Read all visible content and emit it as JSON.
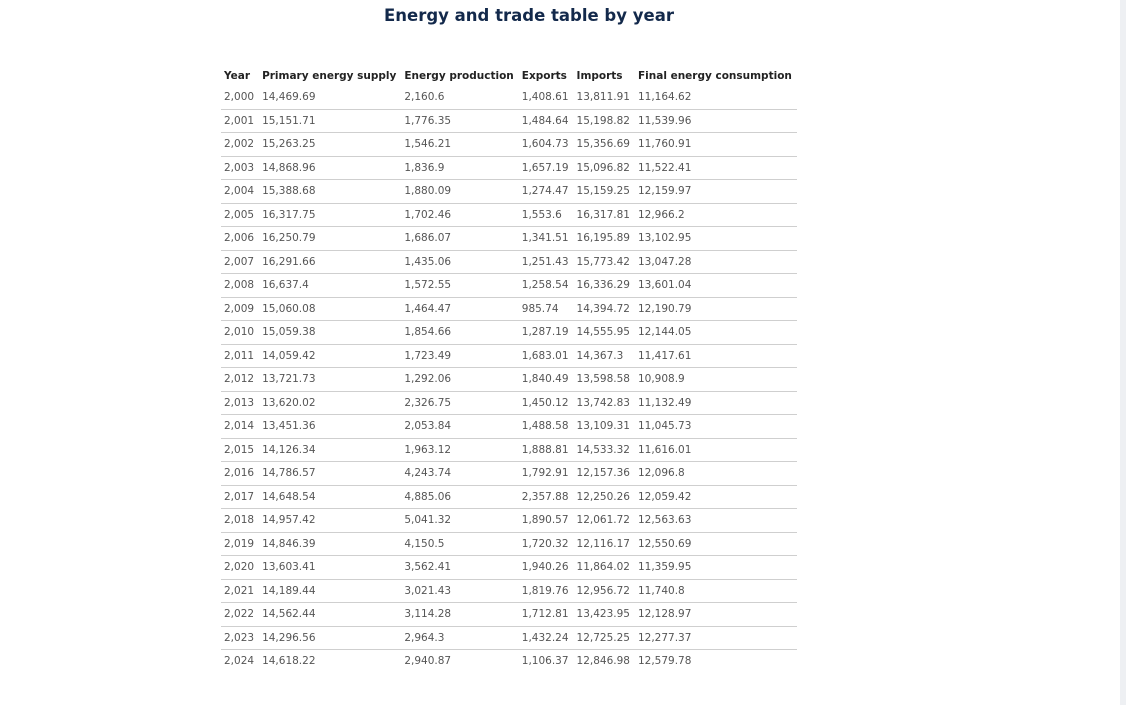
{
  "chart_data": {
    "type": "table",
    "title": "Energy and trade table by year",
    "columns": [
      "Year",
      "Primary energy supply",
      "Energy production",
      "Exports",
      "Imports",
      "Final energy consumption"
    ],
    "rows": [
      [
        "2,000",
        "14,469.69",
        "2,160.6",
        "1,408.61",
        "13,811.91",
        "11,164.62"
      ],
      [
        "2,001",
        "15,151.71",
        "1,776.35",
        "1,484.64",
        "15,198.82",
        "11,539.96"
      ],
      [
        "2,002",
        "15,263.25",
        "1,546.21",
        "1,604.73",
        "15,356.69",
        "11,760.91"
      ],
      [
        "2,003",
        "14,868.96",
        "1,836.9",
        "1,657.19",
        "15,096.82",
        "11,522.41"
      ],
      [
        "2,004",
        "15,388.68",
        "1,880.09",
        "1,274.47",
        "15,159.25",
        "12,159.97"
      ],
      [
        "2,005",
        "16,317.75",
        "1,702.46",
        "1,553.6",
        "16,317.81",
        "12,966.2"
      ],
      [
        "2,006",
        "16,250.79",
        "1,686.07",
        "1,341.51",
        "16,195.89",
        "13,102.95"
      ],
      [
        "2,007",
        "16,291.66",
        "1,435.06",
        "1,251.43",
        "15,773.42",
        "13,047.28"
      ],
      [
        "2,008",
        "16,637.4",
        "1,572.55",
        "1,258.54",
        "16,336.29",
        "13,601.04"
      ],
      [
        "2,009",
        "15,060.08",
        "1,464.47",
        "985.74",
        "14,394.72",
        "12,190.79"
      ],
      [
        "2,010",
        "15,059.38",
        "1,854.66",
        "1,287.19",
        "14,555.95",
        "12,144.05"
      ],
      [
        "2,011",
        "14,059.42",
        "1,723.49",
        "1,683.01",
        "14,367.3",
        "11,417.61"
      ],
      [
        "2,012",
        "13,721.73",
        "1,292.06",
        "1,840.49",
        "13,598.58",
        "10,908.9"
      ],
      [
        "2,013",
        "13,620.02",
        "2,326.75",
        "1,450.12",
        "13,742.83",
        "11,132.49"
      ],
      [
        "2,014",
        "13,451.36",
        "2,053.84",
        "1,488.58",
        "13,109.31",
        "11,045.73"
      ],
      [
        "2,015",
        "14,126.34",
        "1,963.12",
        "1,888.81",
        "14,533.32",
        "11,616.01"
      ],
      [
        "2,016",
        "14,786.57",
        "4,243.74",
        "1,792.91",
        "12,157.36",
        "12,096.8"
      ],
      [
        "2,017",
        "14,648.54",
        "4,885.06",
        "2,357.88",
        "12,250.26",
        "12,059.42"
      ],
      [
        "2,018",
        "14,957.42",
        "5,041.32",
        "1,890.57",
        "12,061.72",
        "12,563.63"
      ],
      [
        "2,019",
        "14,846.39",
        "4,150.5",
        "1,720.32",
        "12,116.17",
        "12,550.69"
      ],
      [
        "2,020",
        "13,603.41",
        "3,562.41",
        "1,940.26",
        "11,864.02",
        "11,359.95"
      ],
      [
        "2,021",
        "14,189.44",
        "3,021.43",
        "1,819.76",
        "12,956.72",
        "11,740.8"
      ],
      [
        "2,022",
        "14,562.44",
        "3,114.28",
        "1,712.81",
        "13,423.95",
        "12,128.97"
      ],
      [
        "2,023",
        "14,296.56",
        "2,964.3",
        "1,432.24",
        "12,725.25",
        "12,277.37"
      ],
      [
        "2,024",
        "14,618.22",
        "2,940.87",
        "1,106.37",
        "12,846.98",
        "12,579.78"
      ]
    ]
  }
}
